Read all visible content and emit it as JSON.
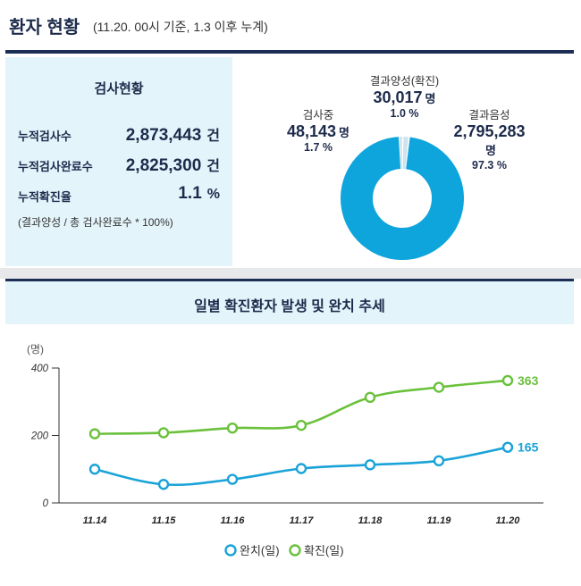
{
  "header": {
    "title": "환자 현황",
    "subtitle": "(11.20. 00시 기준, 1.3 이후 누계)"
  },
  "stats": {
    "title": "검사현황",
    "items": [
      {
        "label": "누적검사수",
        "value": "2,873,443",
        "unit": "건"
      },
      {
        "label": "누적검사완료수",
        "value": "2,825,300",
        "unit": "건"
      },
      {
        "label": "누적확진율",
        "value": "1.1",
        "unit": "%"
      }
    ],
    "note": "(결과양성 / 총 검사완료수 * 100%)"
  },
  "chart_data": [
    {
      "type": "pie",
      "donut": true,
      "slices": [
        {
          "label": "결과음성",
          "value": 2795283,
          "value_text": "2,795,283",
          "unit": "명",
          "pct": "97.3 %",
          "color": "#0ea4dc"
        },
        {
          "label": "결과양성(확진)",
          "value": 30017,
          "value_text": "30,017",
          "unit": "명",
          "pct": "1.0 %",
          "color": "#cfe3ec"
        },
        {
          "label": "검사중",
          "value": 48143,
          "value_text": "48,143",
          "unit": "명",
          "pct": "1.7 %",
          "color": "#cfe3ec"
        }
      ]
    },
    {
      "type": "line",
      "title": "일별 확진환자 발생 및 완치 추세",
      "ylabel": "(명)",
      "categories": [
        "11.14",
        "11.15",
        "11.16",
        "11.17",
        "11.18",
        "11.19",
        "11.20"
      ],
      "yticks": [
        0,
        200,
        400
      ],
      "ylim": [
        0,
        400
      ],
      "grid": false,
      "legend": "bottom-center",
      "series": [
        {
          "name": "확진(일)",
          "color": "#6ac13b",
          "values": [
            205,
            208,
            222,
            230,
            313,
            343,
            363
          ],
          "end_label": "363"
        },
        {
          "name": "완치(일)",
          "color": "#1aa3d8",
          "values": [
            100,
            55,
            70,
            102,
            113,
            125,
            165
          ],
          "end_label": "165"
        }
      ]
    }
  ]
}
